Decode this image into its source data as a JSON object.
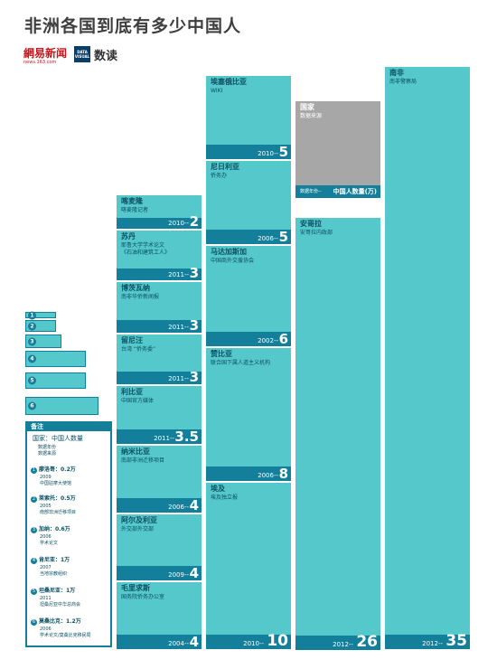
{
  "header": {
    "title": "非洲各国到底有多少中国人",
    "logo_netease": "網易新闻",
    "logo_netease_sub": "news.163.com",
    "logo_data": "DATA VISUAL",
    "logo_data_text": "数读"
  },
  "colors": {
    "block": "#55c8cc",
    "bar": "#137f9a",
    "source_block": "#a7a7a7",
    "text": "#0c4f61"
  },
  "chart_data": {
    "type": "table",
    "title": "非洲各国到底有多少中国人",
    "unit": "万",
    "countries": [
      {
        "name": "南非",
        "source": "南非警察局",
        "year": "2012",
        "value": 35
      },
      {
        "name": "安哥拉",
        "source": "安哥拉内政部",
        "year": "2012",
        "value": 26
      },
      {
        "name": "埃及",
        "source": "埃及独立报",
        "year": "2010",
        "value": 10
      },
      {
        "name": "赞比亚",
        "source": "联合国下属人道主义机构",
        "year": "2006",
        "value": 8
      },
      {
        "name": "马达加斯加",
        "source": "中国商外交援协会",
        "year": "2002",
        "value": 6
      },
      {
        "name": "尼日利亚",
        "source": "侨务办",
        "year": "2006",
        "value": 5
      },
      {
        "name": "埃塞俄比亚",
        "source": "WIKI",
        "year": "2010",
        "value": 5
      },
      {
        "name": "毛里求斯",
        "source": "国务院侨务办公室",
        "year": "2004",
        "value": 4
      },
      {
        "name": "阿尔及利亚",
        "source": "外交部外交部",
        "year": "2009",
        "value": 4
      },
      {
        "name": "纳米比亚",
        "source": "南部非洲迁移项目",
        "year": "2006",
        "value": 4
      },
      {
        "name": "利比亚",
        "source": "中国官方媒体",
        "year": "2011",
        "value": 3.5
      },
      {
        "name": "留尼汪",
        "source": "台湾 “侨务委”",
        "year": "2011",
        "value": 3
      },
      {
        "name": "博茨瓦纳",
        "source": "南非华侨新闻报",
        "year": "2011",
        "value": 3
      },
      {
        "name": "苏丹",
        "source": "耶鲁大学学术论文\n《石油和建筑工人》",
        "year": "2011",
        "value": 3
      },
      {
        "name": "喀麦隆",
        "source": "喀麦隆记者",
        "year": "2010",
        "value": 2
      }
    ],
    "legend_block": {
      "name": "国家",
      "source": "数据来源",
      "year_label": "数据年份",
      "value_label": "中国人数量(万)"
    },
    "small": [
      {
        "rank": "1",
        "name": "廖洛哥",
        "value_text": "0.2万",
        "year": "2009",
        "source": "中国驻摩大使馆"
      },
      {
        "rank": "2",
        "name": "莱索托",
        "value_text": "0.5万",
        "year": "2005",
        "source": "南部非洲迁移项目"
      },
      {
        "rank": "3",
        "name": "加纳",
        "value_text": "0.6万",
        "year": "2006",
        "source": "学术论文"
      },
      {
        "rank": "4",
        "name": "肯尼亚",
        "value_text": "1万",
        "year": "2007",
        "source": "当地宗教组织"
      },
      {
        "rank": "5",
        "name": "坦桑尼亚",
        "value_text": "1万",
        "year": "2011",
        "source": "坦桑尼亚中华总商会"
      },
      {
        "rank": "6",
        "name": "莫桑比克",
        "value_text": "1.2万",
        "year": "2006",
        "source": "学术论文/莫桑比克移民局"
      }
    ]
  },
  "notes": {
    "heading": "备注",
    "legend_main": "国家：中国人数量",
    "legend_year": "数据年份",
    "legend_source": "数据来源"
  }
}
